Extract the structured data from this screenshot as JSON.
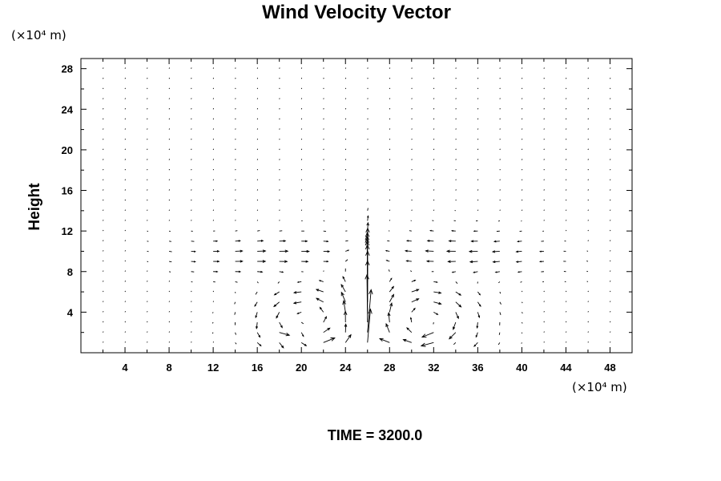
{
  "chart_data": {
    "type": "vector-field",
    "title": "Wind Velocity Vector",
    "ylabel": "Height",
    "x_unit_label": "(×10⁴ m)",
    "y_unit_label": "(×10⁴ m)",
    "xlim": [
      0,
      50
    ],
    "ylim": [
      0,
      29
    ],
    "x_ticks": [
      4,
      8,
      12,
      16,
      20,
      24,
      28,
      32,
      36,
      40,
      44,
      48
    ],
    "y_ticks": [
      4,
      8,
      12,
      16,
      20,
      24,
      28
    ],
    "annotation": "TIME = 3200.0",
    "grid": false,
    "legend": "none",
    "field": {
      "x_start": 2,
      "x_step": 2,
      "x_count": 24,
      "y_start": 1,
      "y_step": 1,
      "y_count": 28,
      "description": "two counter-rotating convective cells centred near x≈20,y≈3 and x≈31,y≈3 with a strong updraft column near x≈26"
    }
  }
}
